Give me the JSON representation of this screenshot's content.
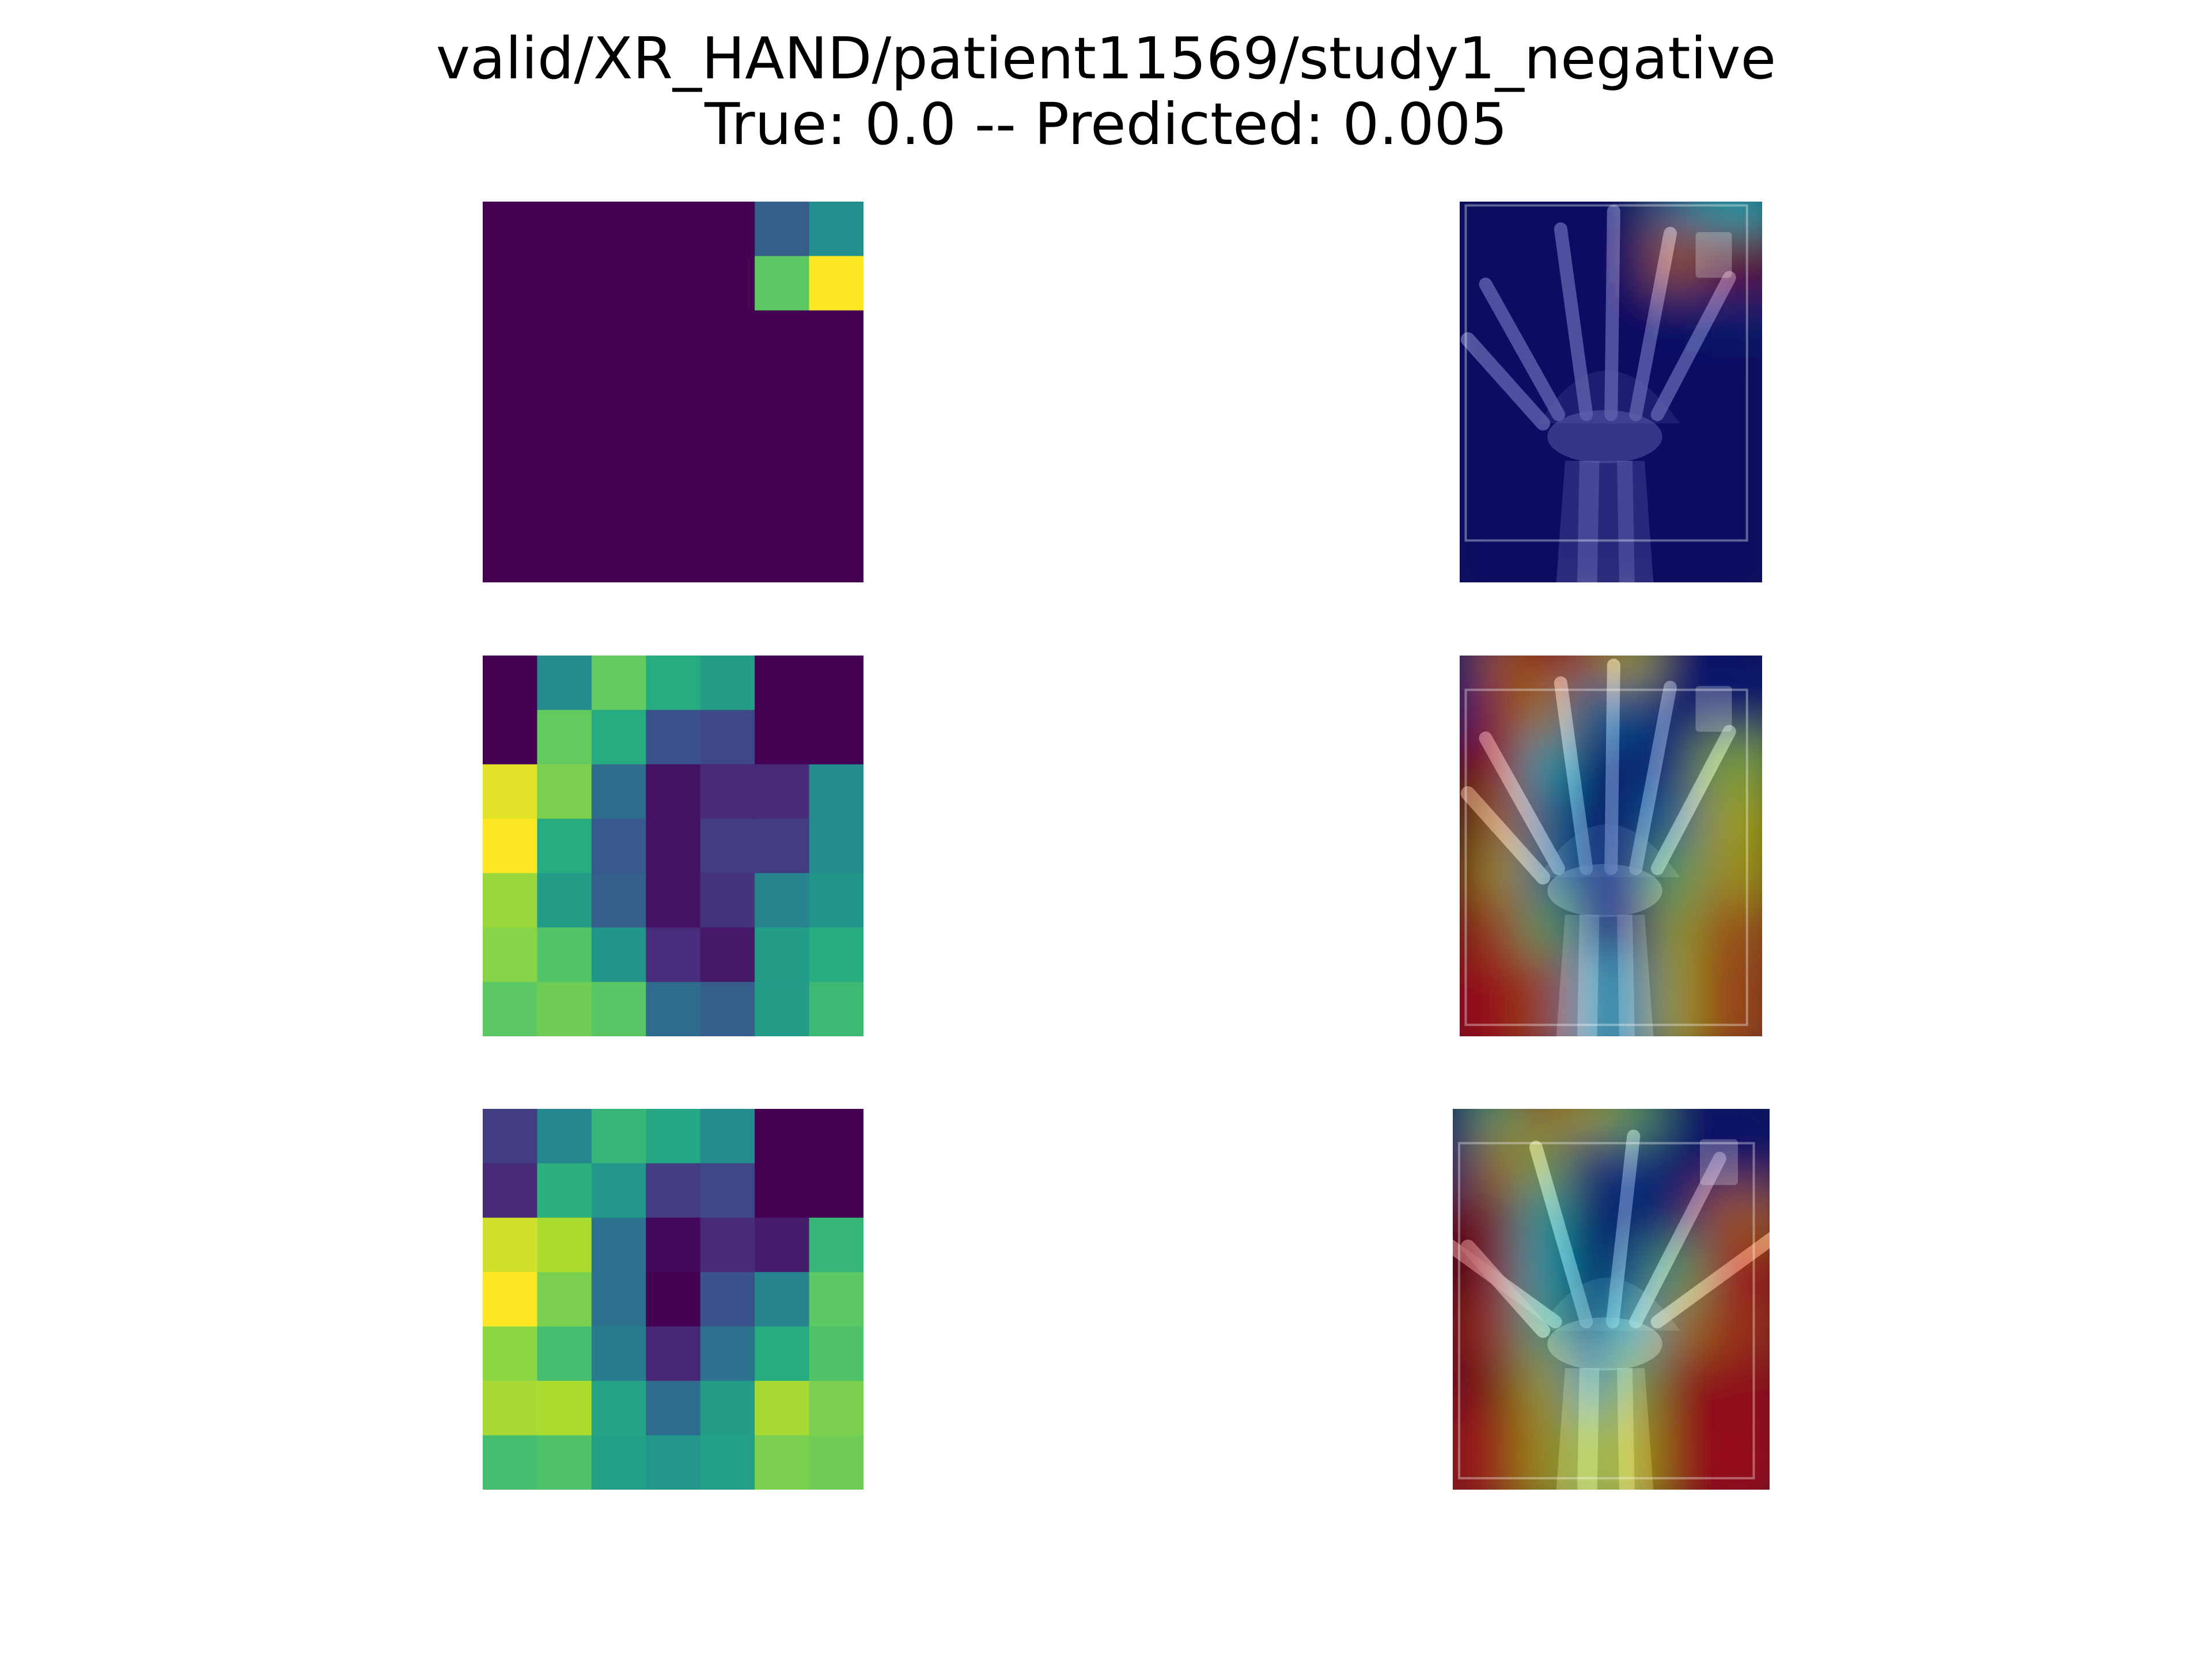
{
  "title": {
    "line1": "valid/XR_HAND/patient11569/study1_negative",
    "line2": "True: 0.0 -- Predicted: 0.005"
  },
  "colormap": "viridis",
  "overlay_colormap": "jet",
  "chart_data": {
    "type": "heatmap",
    "title": "valid/XR_HAND/patient11569/study1_negative",
    "subtitle": "True: 0.0 -- Predicted: 0.005",
    "true_label": 0.0,
    "predicted": 0.005,
    "grid": false,
    "axes_visible": false,
    "panels": [
      {
        "rows": 7,
        "cols": 7,
        "values": [
          [
            0.0,
            0.0,
            0.0,
            0.0,
            0.0,
            0.3,
            0.5
          ],
          [
            0.0,
            0.0,
            0.0,
            0.0,
            0.0,
            0.75,
            1.0
          ],
          [
            0.0,
            0.0,
            0.0,
            0.0,
            0.0,
            0.0,
            0.0
          ],
          [
            0.0,
            0.0,
            0.0,
            0.0,
            0.0,
            0.0,
            0.0
          ],
          [
            0.0,
            0.0,
            0.0,
            0.0,
            0.0,
            0.0,
            0.0
          ],
          [
            0.0,
            0.0,
            0.0,
            0.0,
            0.0,
            0.0,
            0.0
          ],
          [
            0.0,
            0.0,
            0.0,
            0.0,
            0.0,
            0.0,
            0.0
          ]
        ]
      },
      {
        "rows": 7,
        "cols": 7,
        "values": [
          [
            0.0,
            0.48,
            0.76,
            0.62,
            0.55,
            0.0,
            0.0
          ],
          [
            0.0,
            0.76,
            0.62,
            0.25,
            0.22,
            0.0,
            0.0
          ],
          [
            0.96,
            0.8,
            0.35,
            0.05,
            0.12,
            0.12,
            0.48
          ],
          [
            1.0,
            0.62,
            0.28,
            0.05,
            0.18,
            0.18,
            0.48
          ],
          [
            0.85,
            0.55,
            0.3,
            0.05,
            0.15,
            0.45,
            0.52
          ],
          [
            0.82,
            0.73,
            0.52,
            0.13,
            0.07,
            0.55,
            0.62
          ],
          [
            0.75,
            0.78,
            0.74,
            0.35,
            0.3,
            0.55,
            0.68
          ]
        ]
      },
      {
        "rows": 7,
        "cols": 7,
        "values": [
          [
            0.18,
            0.46,
            0.66,
            0.6,
            0.48,
            0.0,
            0.0
          ],
          [
            0.12,
            0.64,
            0.53,
            0.18,
            0.22,
            0.0,
            0.0
          ],
          [
            0.93,
            0.88,
            0.38,
            0.02,
            0.12,
            0.08,
            0.66
          ],
          [
            1.0,
            0.8,
            0.38,
            0.0,
            0.25,
            0.45,
            0.75
          ],
          [
            0.83,
            0.7,
            0.42,
            0.11,
            0.38,
            0.62,
            0.72
          ],
          [
            0.87,
            0.88,
            0.58,
            0.35,
            0.55,
            0.87,
            0.8
          ],
          [
            0.7,
            0.72,
            0.57,
            0.53,
            0.57,
            0.8,
            0.78
          ]
        ]
      }
    ],
    "overlays": [
      {
        "rows": 7,
        "cols": 7,
        "values": [
          [
            0.0,
            0.0,
            0.0,
            0.0,
            0.0,
            0.3,
            0.4
          ],
          [
            0.0,
            0.0,
            0.0,
            0.0,
            0.0,
            0.7,
            0.95
          ],
          [
            0.0,
            0.0,
            0.0,
            0.0,
            0.0,
            0.05,
            0.1
          ],
          [
            0.0,
            0.0,
            0.0,
            0.0,
            0.0,
            0.0,
            0.0
          ],
          [
            0.0,
            0.0,
            0.0,
            0.0,
            0.0,
            0.0,
            0.0
          ],
          [
            0.0,
            0.0,
            0.0,
            0.0,
            0.0,
            0.0,
            0.0
          ],
          [
            0.0,
            0.0,
            0.0,
            0.0,
            0.0,
            0.0,
            0.0
          ]
        ]
      },
      {
        "rows": 7,
        "cols": 7,
        "values": [
          [
            0.05,
            0.7,
            0.78,
            0.7,
            0.6,
            0.05,
            0.05
          ],
          [
            0.08,
            0.75,
            0.65,
            0.3,
            0.25,
            0.1,
            0.1
          ],
          [
            0.95,
            0.82,
            0.4,
            0.1,
            0.15,
            0.2,
            0.55
          ],
          [
            1.0,
            0.68,
            0.3,
            0.08,
            0.2,
            0.3,
            0.6
          ],
          [
            0.9,
            0.62,
            0.3,
            0.1,
            0.2,
            0.5,
            0.62
          ],
          [
            0.86,
            0.72,
            0.5,
            0.15,
            0.12,
            0.58,
            0.7
          ],
          [
            0.8,
            0.8,
            0.72,
            0.35,
            0.3,
            0.6,
            0.72
          ]
        ]
      },
      {
        "rows": 7,
        "cols": 7,
        "values": [
          [
            0.15,
            0.5,
            0.68,
            0.6,
            0.5,
            0.05,
            0.05
          ],
          [
            0.12,
            0.66,
            0.55,
            0.2,
            0.22,
            0.05,
            0.05
          ],
          [
            0.95,
            0.9,
            0.42,
            0.05,
            0.15,
            0.1,
            0.7
          ],
          [
            1.0,
            0.85,
            0.4,
            0.05,
            0.28,
            0.5,
            0.78
          ],
          [
            0.88,
            0.75,
            0.45,
            0.15,
            0.4,
            0.65,
            0.75
          ],
          [
            0.88,
            0.9,
            0.6,
            0.35,
            0.55,
            0.85,
            0.82
          ],
          [
            0.78,
            0.78,
            0.62,
            0.55,
            0.6,
            0.82,
            0.8
          ]
        ]
      }
    ]
  }
}
